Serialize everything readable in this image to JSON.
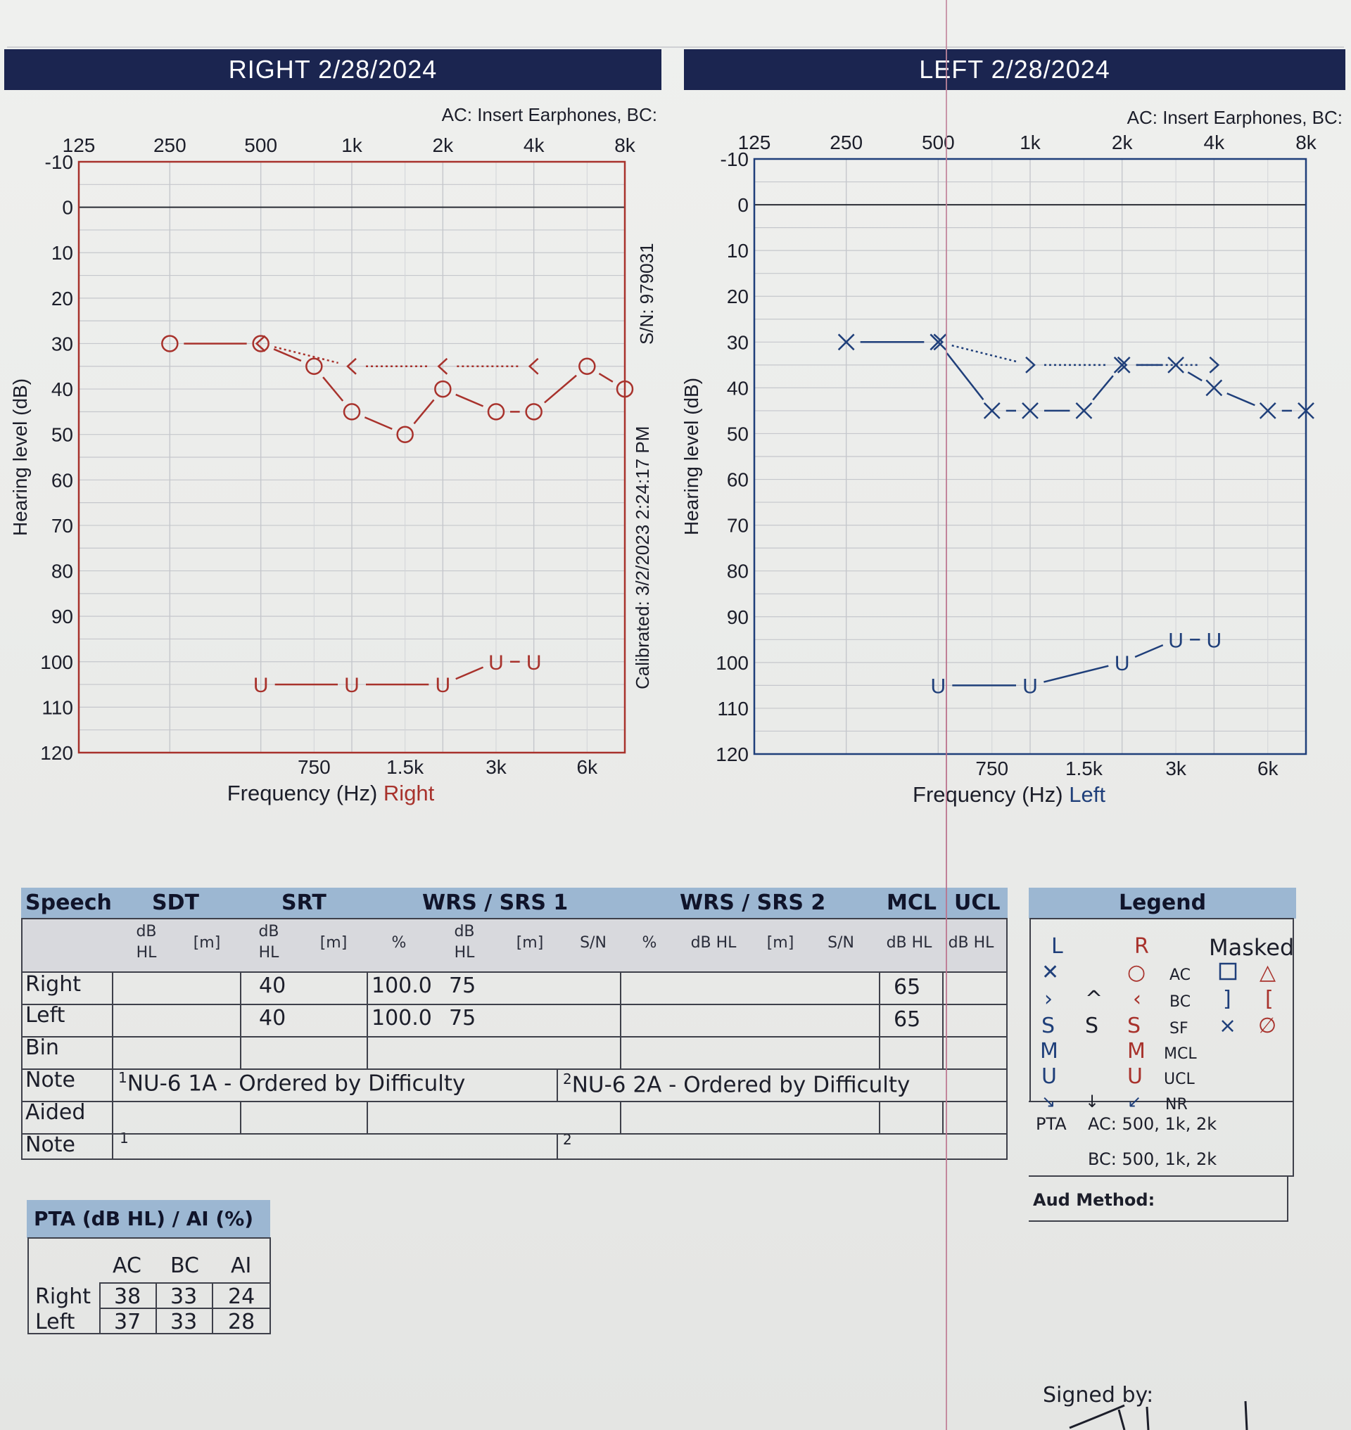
{
  "right_title": "RIGHT  2/28/2024",
  "left_title": "LEFT  2/28/2024",
  "transducer_right": "AC: Insert Earphones, BC:",
  "transducer_left": "AC: Insert Earphones, BC:",
  "serial": "S/N: 979031",
  "calibrated": "Calibrated: 3/2/2023 2:24:17 PM",
  "colors": {
    "right": "#a8322c",
    "left": "#1f3f7a",
    "banner": "#1b2550",
    "header": "#9cb7d2"
  },
  "chart_data": [
    {
      "type": "line",
      "ear": "right",
      "ylabel": "Hearing level (dB)",
      "xlabel": "Frequency (Hz)",
      "xlabel_ear": "Right",
      "x_top_ticks": [
        "125",
        "250",
        "500",
        "1k",
        "2k",
        "4k",
        "8k"
      ],
      "x_bottom_ticks": [
        "750",
        "1.5k",
        "3k",
        "6k"
      ],
      "y_ticks": [
        "-10",
        "0",
        "10",
        "20",
        "30",
        "40",
        "50",
        "60",
        "70",
        "80",
        "90",
        "100",
        "110",
        "120"
      ],
      "ylim": [
        -10,
        120
      ],
      "y_inverted": true,
      "series": [
        {
          "symbol": "O",
          "x": [
            250,
            500,
            750,
            1000,
            1500,
            2000,
            3000,
            4000,
            6000,
            8000
          ],
          "y": [
            30,
            30,
            35,
            45,
            50,
            40,
            45,
            45,
            35,
            40
          ]
        },
        {
          "symbol": "<",
          "x": [
            500,
            1000,
            2000,
            4000
          ],
          "y": [
            30,
            35,
            35,
            35
          ]
        },
        {
          "symbol": "U",
          "x": [
            500,
            1000,
            2000,
            3000,
            4000
          ],
          "y": [
            105,
            105,
            105,
            100,
            100
          ]
        }
      ]
    },
    {
      "type": "line",
      "ear": "left",
      "ylabel": "Hearing level (dB)",
      "xlabel": "Frequency (Hz)",
      "xlabel_ear": "Left",
      "x_top_ticks": [
        "125",
        "250",
        "500",
        "1k",
        "2k",
        "4k",
        "8k"
      ],
      "x_bottom_ticks": [
        "750",
        "1.5k",
        "3k",
        "6k"
      ],
      "y_ticks": [
        "-10",
        "0",
        "10",
        "20",
        "30",
        "40",
        "50",
        "60",
        "70",
        "80",
        "90",
        "100",
        "110",
        "120"
      ],
      "ylim": [
        -10,
        120
      ],
      "y_inverted": true,
      "series": [
        {
          "symbol": "X",
          "x": [
            250,
            500,
            750,
            1000,
            1500,
            2000,
            3000,
            4000,
            6000,
            8000
          ],
          "y": [
            30,
            30,
            45,
            45,
            45,
            35,
            35,
            40,
            45,
            45
          ]
        },
        {
          "symbol": ">",
          "x": [
            500,
            1000,
            2000,
            4000
          ],
          "y": [
            30,
            35,
            35,
            35
          ]
        },
        {
          "symbol": "U",
          "x": [
            500,
            1000,
            2000,
            3000,
            4000
          ],
          "y": [
            105,
            105,
            100,
            95,
            95
          ]
        }
      ]
    }
  ],
  "speech": {
    "headers": [
      "Speech",
      "SDT",
      "SRT",
      "WRS / SRS 1",
      "WRS / SRS 2",
      "MCL",
      "UCL"
    ],
    "sub": {
      "dbhl_a": "dB",
      "dbhl_b": "HL",
      "m": "[m]",
      "pct": "%",
      "db": "dB",
      "hl": "HL",
      "sn": "S/N",
      "dbhl": "dB HL"
    },
    "rows": [
      "Right",
      "Left",
      "Bin",
      "Note",
      "Aided",
      "Note"
    ],
    "right_srt": "40",
    "right_wrs_pct": "100.0",
    "right_wrs_db": "75",
    "right_mcl": "65",
    "left_srt": "40",
    "left_wrs_pct": "100.0",
    "left_wrs_db": "75",
    "left_mcl": "65",
    "note1_num": "1",
    "note1": "NU-6 1A - Ordered by Difficulty",
    "note2_num": "2",
    "note2": "NU-6 2A - Ordered by Difficulty",
    "aided_note1": "1",
    "aided_note2": "2"
  },
  "legend": {
    "title": "Legend",
    "col_l": "L",
    "col_r": "R",
    "col_masked": "Masked",
    "rows": [
      "AC",
      "BC",
      "SF",
      "MCL",
      "UCL",
      "NR"
    ],
    "pta_label": "PTA",
    "pta_ac": "AC: 500, 1k, 2k",
    "pta_bc": "BC: 500, 1k, 2k",
    "aud_method": "Aud Method:"
  },
  "pta": {
    "title": "PTA (dB HL) / AI (%)",
    "cols": [
      "AC",
      "BC",
      "AI"
    ],
    "right_label": "Right",
    "right": [
      "38",
      "33",
      "24"
    ],
    "left_label": "Left",
    "left": [
      "37",
      "33",
      "28"
    ]
  },
  "signed_by": "Signed by:"
}
